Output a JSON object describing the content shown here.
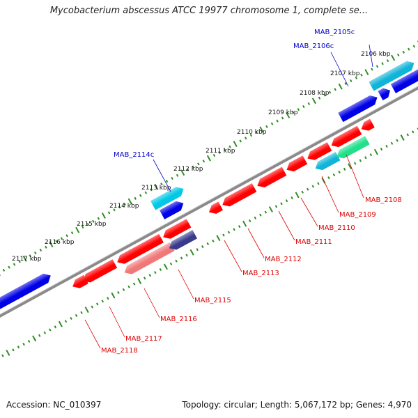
{
  "title": "Mycobacterium abscessus ATCC 19977 chromosome 1, complete se...",
  "accession": "Accession: NC_010397",
  "summary": "Topology: circular; Length: 5,067,172 bp; Genes: 4,970",
  "colors": {
    "background": "#ffffff",
    "backbone": "#8a8a8a",
    "ruler_ticks": "#2e8b22",
    "forward_cds": "#0000e6",
    "reverse_cds": "#ff0000",
    "forward_label": "#0000cc",
    "reverse_label": "#dd0000"
  },
  "kbp_ticks": [
    "2106 kbp",
    "2107 kbp",
    "2108 kbp",
    "2109 kbp",
    "2110 kbp",
    "2111 kbp",
    "2112 kbp",
    "2113 kbp",
    "2114 kbp",
    "2115 kbp",
    "2116 kbp",
    "2117 kbp"
  ],
  "gene_labels_forward": [
    "MAB_2105c",
    "MAB_2106c",
    "MAB_2114c"
  ],
  "gene_labels_reverse": [
    "MAB_2108",
    "MAB_2109",
    "MAB_2110",
    "MAB_2111",
    "MAB_2112",
    "MAB_2113",
    "MAB_2115",
    "MAB_2116",
    "MAB_2117",
    "MAB_2118"
  ]
}
